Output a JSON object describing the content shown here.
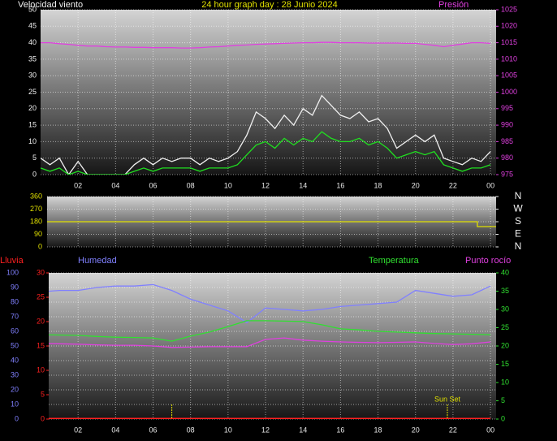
{
  "chart_data": [
    {
      "type": "line",
      "title": "24 hour graph day : 28 Junio 2024",
      "x": [
        0,
        0.5,
        1,
        1.5,
        2,
        2.5,
        3,
        3.5,
        4,
        4.5,
        5,
        5.5,
        6,
        6.5,
        7,
        7.5,
        8,
        8.5,
        9,
        9.5,
        10,
        10.5,
        11,
        11.5,
        12,
        12.5,
        13,
        13.5,
        14,
        14.5,
        15,
        15.5,
        16,
        16.5,
        17,
        17.5,
        18,
        18.5,
        19,
        19.5,
        20,
        20.5,
        21,
        21.5,
        22,
        22.5,
        23,
        23.5,
        24
      ],
      "xlim": [
        0,
        24.3
      ],
      "xticks": [
        {
          "value": 2,
          "label": "02"
        },
        {
          "value": 4,
          "label": "04"
        },
        {
          "value": 6,
          "label": "06"
        },
        {
          "value": 8,
          "label": "08"
        },
        10,
        12,
        14,
        16,
        18,
        20,
        22,
        {
          "value": 24,
          "label": "00"
        }
      ],
      "ylim": [
        0,
        50
      ],
      "yticks": [
        0,
        5,
        10,
        15,
        20,
        25,
        30,
        35,
        40,
        45,
        50
      ],
      "y2lim": [
        975,
        1025
      ],
      "y2ticks": [
        975,
        980,
        985,
        990,
        995,
        1000,
        1005,
        1010,
        1015,
        1020,
        1025
      ],
      "grid": true,
      "series": [
        {
          "name": "Velocidad viento",
          "color": "#f0f0f0",
          "values": [
            5,
            3,
            5,
            0,
            4,
            0,
            0,
            0,
            0,
            0,
            3,
            5,
            3,
            5,
            4,
            5,
            5,
            3,
            5,
            4,
            5,
            7,
            12,
            19,
            17,
            14,
            18,
            15,
            20,
            18,
            24,
            21,
            18,
            17,
            19,
            16,
            17,
            14,
            8,
            10,
            12,
            10,
            12,
            5,
            4,
            3,
            5,
            4,
            7
          ]
        },
        {
          "color": "#20e020",
          "values": [
            2,
            1,
            2,
            0,
            1,
            0,
            0,
            0,
            0,
            0,
            1,
            2,
            1,
            2,
            2,
            2,
            2,
            1,
            2,
            2,
            2,
            3,
            6,
            9,
            10,
            8,
            11,
            9,
            11,
            10,
            13,
            11,
            10,
            10,
            11,
            9,
            10,
            8,
            5,
            6,
            7,
            6,
            7,
            3,
            2,
            1,
            2,
            2,
            3
          ]
        },
        {
          "name": "Presión",
          "color": "#e040e0",
          "axis": "y2",
          "values": [
            1015,
            1015,
            1014.7,
            1014.5,
            1014.2,
            1014,
            1014,
            1013.8,
            1013.7,
            1013.7,
            1013.6,
            1013.6,
            1013.5,
            1013.5,
            1013.5,
            1013.4,
            1013.4,
            1013.5,
            1013.7,
            1013.8,
            1014,
            1014.2,
            1014.3,
            1014.5,
            1014.6,
            1014.7,
            1014.8,
            1014.9,
            1015,
            1015,
            1015.1,
            1015.1,
            1015,
            1015,
            1015,
            1014.9,
            1014.9,
            1014.9,
            1014.9,
            1014.8,
            1014.8,
            1014.5,
            1014.2,
            1013.8,
            1014.2,
            1014.6,
            1015,
            1015,
            1014.8
          ]
        }
      ]
    },
    {
      "type": "line",
      "x": [
        0,
        23.3,
        23.3,
        24.3
      ],
      "xlim": [
        0,
        24.3
      ],
      "ylim": [
        0,
        360
      ],
      "yticks": [
        0,
        90,
        180,
        270,
        360
      ],
      "y2lim": [
        0,
        360
      ],
      "y2ticks": [
        {
          "value": 360,
          "label": "N"
        },
        {
          "value": 270,
          "label": "W"
        },
        {
          "value": 180,
          "label": "S"
        },
        {
          "value": 90,
          "label": "E"
        },
        {
          "value": 0,
          "label": "N"
        }
      ],
      "grid": true,
      "series": [
        {
          "color": "#e0e000",
          "values": [
            180,
            180,
            145,
            145
          ]
        }
      ]
    },
    {
      "type": "line",
      "x": [
        0,
        1,
        2,
        3,
        4,
        5,
        6,
        7,
        8,
        9,
        10,
        11,
        12,
        13,
        14,
        15,
        16,
        17,
        18,
        19,
        20,
        21,
        22,
        23,
        24
      ],
      "xlim": [
        0,
        24.3
      ],
      "xticks": [
        {
          "value": 2,
          "label": "02"
        },
        {
          "value": 4,
          "label": "04"
        },
        {
          "value": 6,
          "label": "06"
        },
        {
          "value": 8,
          "label": "08"
        },
        10,
        12,
        14,
        16,
        18,
        20,
        22,
        {
          "value": 24,
          "label": "00"
        }
      ],
      "ylim": [
        0,
        100
      ],
      "yticks": [
        0,
        10,
        20,
        30,
        40,
        50,
        60,
        70,
        80,
        90,
        100
      ],
      "y3lim": [
        0,
        30
      ],
      "y3ticks": [
        0,
        5,
        10,
        15,
        20,
        25,
        30
      ],
      "y2lim": [
        0,
        40
      ],
      "y2ticks": [
        0,
        5,
        10,
        15,
        20,
        25,
        30,
        35,
        40
      ],
      "grid": true,
      "series": [
        {
          "name": "Lluvia",
          "color": "#ff2020",
          "axis": "y3",
          "values": [
            0,
            0,
            0,
            0,
            0,
            0,
            0,
            0,
            0,
            0,
            0,
            0,
            0,
            0,
            0,
            0,
            0,
            0,
            0,
            0,
            0,
            0,
            0,
            0,
            0
          ]
        },
        {
          "name": "Humedad",
          "color": "#8080ff",
          "values": [
            87,
            88,
            88,
            90,
            91,
            91,
            92,
            88,
            82,
            78,
            74,
            66,
            76,
            75,
            74,
            75,
            77,
            78,
            79,
            80,
            88,
            86,
            84,
            85,
            91
          ]
        },
        {
          "name": "Temperatura",
          "color": "#30e030",
          "axis": "y2",
          "values": [
            23.1,
            23,
            22.9,
            22.6,
            22.4,
            22.3,
            22.2,
            21.3,
            22.7,
            23.8,
            25.3,
            26.9,
            26.9,
            26.8,
            26.7,
            25.8,
            24.7,
            24.4,
            24,
            23.8,
            23.6,
            23.4,
            23.3,
            23.2,
            23.1
          ]
        },
        {
          "name": "Punto rocío",
          "color": "#e040e0",
          "axis": "y2",
          "values": [
            20.7,
            20.6,
            20.5,
            20.3,
            20.2,
            20.2,
            20,
            19.6,
            19.7,
            19.8,
            19.8,
            19.8,
            21.8,
            22.2,
            21.6,
            21.3,
            21.1,
            21,
            20.9,
            21,
            21.1,
            20.7,
            20.4,
            20.6,
            21.1
          ]
        }
      ],
      "markers": [
        {
          "x": 7.0
        },
        {
          "x": 21.7,
          "label": "Sun Set"
        }
      ]
    }
  ]
}
